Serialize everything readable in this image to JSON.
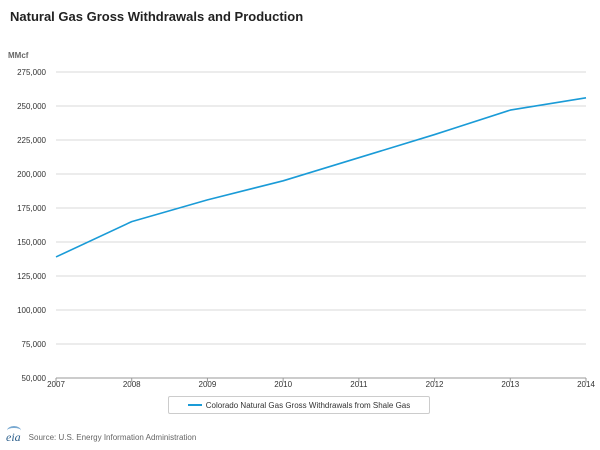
{
  "chart_data": {
    "type": "line",
    "title": "Natural Gas Gross Withdrawals and Production",
    "unit_label": "MMcf",
    "x": [
      "2007",
      "2008",
      "2009",
      "2010",
      "2011",
      "2012",
      "2013",
      "2014"
    ],
    "series": [
      {
        "name": "Colorado Natural Gas Gross Withdrawals from Shale Gas",
        "color": "#1a9bd7",
        "values": [
          139000,
          165000,
          181000,
          195000,
          212000,
          229000,
          247000,
          256000
        ]
      }
    ],
    "ylim": [
      50000,
      275000
    ],
    "yticks": [
      "50,000",
      "75,000",
      "100,000",
      "125,000",
      "150,000",
      "175,000",
      "200,000",
      "225,000",
      "250,000",
      "275,000"
    ],
    "grid": true,
    "legend_position": "bottom-center"
  },
  "footer": {
    "logo_text": "eia",
    "source": "Source: U.S. Energy Information Administration"
  }
}
